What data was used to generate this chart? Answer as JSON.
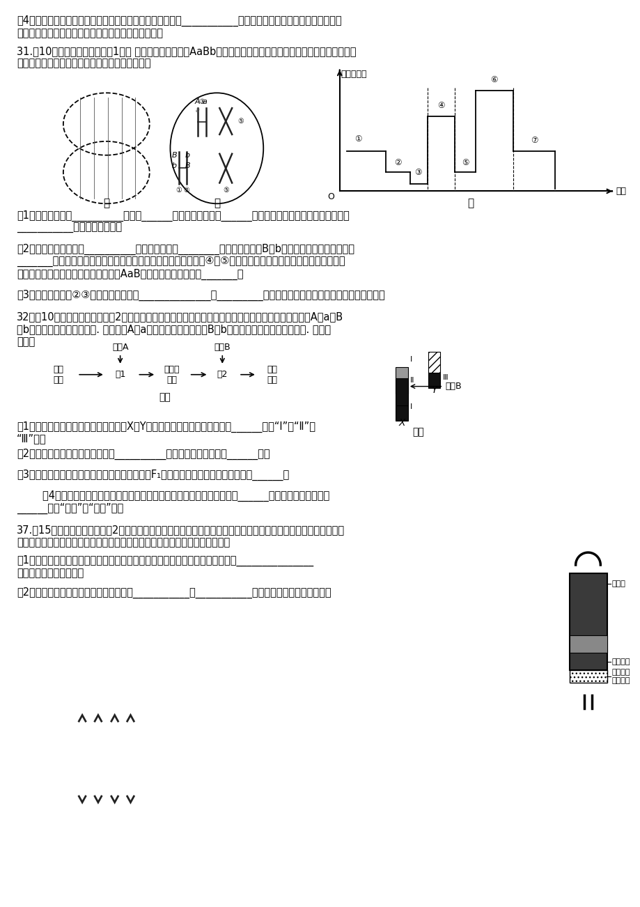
{
  "page_bg": "#ffffff",
  "line1": "（4）干旱条件下，很多植物光合作用速率降低，主要原因是___________。人工光合作用系统由于对环境中水的",
  "line2": "依赖程度较低，在沙漠等缺水地区有广阔的应用前景。",
  "q31_header": "31.（10分，除特别标注外每空1分） 图甲、乙是基因型为AaBb的雌性动物体内细胞的分裂示意图，图丙表示该动物",
  "q31_header2": "细胞分裂时期染色体数量变化曲线，请据图回答：",
  "label_jia": "甲",
  "label_yi": "乙",
  "label_bing": "丙",
  "q31_1": "（1）图甲细胞处于__________分裂的______期，此细胞中含有______个染色体组，它发生在图丙曲线中的",
  "q31_1b": "___________阶段（填编号）。",
  "q31_2": "（2）图乙细胞的名称为__________，此细胞中含有________个四分体，基因B与b的分离发生在图丙曲线中的",
  "q31_2b": "_______阶段（填编号）。若图乙细胞在进行减数第一次分裂时，④和⑤没有分离。减数第二次分裂正常最终形成了",
  "q31_2c": "四个子细胞，其中一个极体的基因型为AaB，则卵细胞的基因型为_______。",
  "q31_3": "（3）图丙曲线中，②③阶段形成的原因是______________；_________阶段（填编号）的细胞内不存在同源染色体。",
  "q32_header": "32、（10分，除特别标注外每空2分）女娄菜是一种雌雄异株的二倍体植物，其花色遗传由两对等位基因A和a、B",
  "q32_header2": "和b共同控制（如图甲所示）. 其中基因A和a位于常染色体上，基因B和b在性染色体上（如图乙所示）. 请据图",
  "q32_header3": "回答：",
  "q32_1": "（1）据图乙可知，在减数分裂过程中，X与Y染色体能发生交叉互换的区段是______（填“Ⅰ”、“Ⅱ”或",
  "q32_1b": "“Ⅲ”）。",
  "q32_2": "（2）开金黄色花的雄株的基因型有__________，绿花植株的基因型有______种。",
  "q32_3": "（3）某一白花雌株与一开金黄色花雄株杂交所得F₁都开绿花，则白花雌株的基因型是______。",
  "q32_4": "        （4）要确定某一开绿花的雌性植株的基因型，可采用的最简捷方案是用______个体（写基因型）与其",
  "q32_4b": "______（填“杂交”或“测交”）。",
  "q37_header": "37.（15分，除特别标注外每空2分）酶是细胞合成的生物催化剂，几乎所有的生命活动都离不开酶。随着生物技术的",
  "q37_header2": "发展，酶制剂的广泛应用给社会带来了较大的经济效益。请回答下列有关问题：",
  "q37_1": "（1）在制作果汁过程中，加入适量的果胶酶可将不溶于水的果胶分解成可溶性的_______________",
  "q37_1b": "使浑浊的果汁变得澄清。",
  "q37_2": "（2）加酶洗衣粉中的酶通常包括蛋白酶、___________和___________。这些酶通常是用特殊的化学",
  "diagram_bing_ylabel": "染色体数量",
  "diagram_bing_xlabel": "时间",
  "reactor_label1": "反应柱",
  "reactor_label2": "固定化酶",
  "reactor_label3": "分布着小\n孔的隔板"
}
